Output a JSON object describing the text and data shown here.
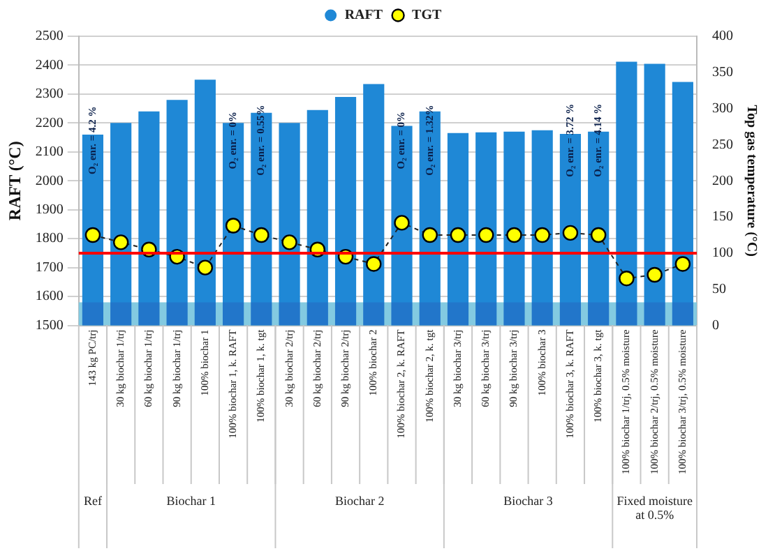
{
  "chart_data": {
    "type": "bar",
    "xlabel": null,
    "ylabel": "RAFT (°C)",
    "y2label": "Top gas temperature (°C)",
    "categories": [
      "143 kg PC/trj",
      "30 kg biochar 1/trj",
      "60 kg biochar 1/trj",
      "90 kg biochar 1/trj",
      "100% biochar 1",
      "100% biochar 1, k. RAFT",
      "100% biochar 1, k. tgt",
      "30 kg biochar 2/trj",
      "60 kg biochar 2/trj",
      "90 kg biochar 2/trj",
      "100% biochar 2",
      "100% biochar 2, k. RAFT",
      "100% biochar 2, k. tgt",
      "30 kg biochar 3/trj",
      "60 kg biochar 3/trj",
      "90 kg biochar 3/trj",
      "100% biochar 3",
      "100% biochar 3, k. RAFT",
      "100% biochar 3, k. tgt",
      "100% biochar 1/trj, 0.5% moisture",
      "100% biochar 2/trj, 0.5% moisture",
      "100% biochar 3/trj, 0.5% moisture"
    ],
    "series": [
      {
        "name": "RAFT",
        "color": "#1f88d6",
        "values": [
          2160,
          2200,
          2240,
          2280,
          2350,
          2200,
          2235,
          2200,
          2245,
          2290,
          2335,
          2190,
          2240,
          2165,
          2168,
          2170,
          2175,
          2162,
          2170,
          2412,
          2405,
          2342
        ]
      },
      {
        "name": "TGT",
        "type": "line",
        "axis": "y2",
        "color": "#ffff00",
        "marker": "circle",
        "line_style": "dashed",
        "values": [
          125,
          115,
          105,
          95,
          80,
          138,
          125,
          115,
          105,
          95,
          85,
          142,
          125,
          125,
          125,
          125,
          125,
          128,
          125,
          65,
          70,
          85
        ]
      }
    ],
    "ylim": [
      1500,
      2500
    ],
    "yticks": [
      1500,
      1600,
      1700,
      1800,
      1900,
      2000,
      2100,
      2200,
      2300,
      2400,
      2500
    ],
    "y2lim": [
      0,
      400
    ],
    "y2ticks": [
      0,
      50,
      100,
      150,
      200,
      250,
      300,
      350,
      400
    ],
    "grid": "y",
    "legend": "top",
    "ref_lines": [
      {
        "axis": "y",
        "value": 1750,
        "color": "#ff0000"
      }
    ],
    "bands": [
      {
        "axis": "y",
        "from": 1500,
        "to": 1580,
        "color": "#a0f8f4"
      }
    ],
    "annotations": [
      "O₂ enr. = 4.2 %",
      "O₂ enr. = 0%",
      "O₂ enr. = 0.55%",
      "O₂ enr. = 0%",
      "O₂ enr. = 1.32%",
      "O₂ enr. = 3.72 %",
      "O₂ enr. = 4.14 %",
      "Ref",
      "Biochar 1",
      "Biochar 2",
      "Biochar 3",
      "Fixed moisture at 0.5%"
    ]
  }
}
